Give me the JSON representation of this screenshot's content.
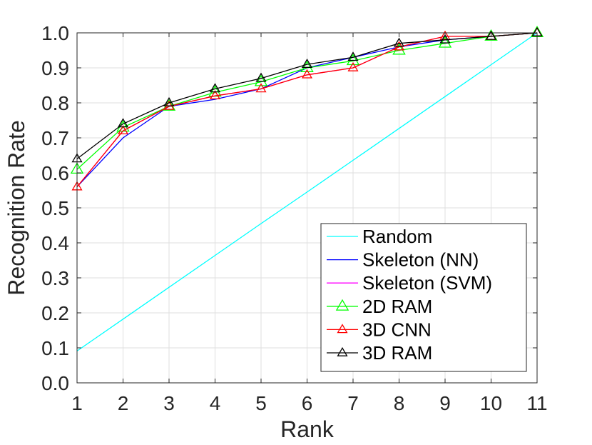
{
  "chart_data": {
    "type": "line",
    "title": "",
    "xlabel": "Rank",
    "ylabel": "Recognition Rate",
    "xlim": [
      1,
      11
    ],
    "ylim": [
      0,
      1
    ],
    "x": [
      1,
      2,
      3,
      4,
      5,
      6,
      7,
      8,
      9,
      10,
      11
    ],
    "xticks": [
      "1",
      "2",
      "3",
      "4",
      "5",
      "6",
      "7",
      "8",
      "9",
      "10",
      "11"
    ],
    "yticks": [
      "0.0",
      "0.1",
      "0.2",
      "0.3",
      "0.4",
      "0.5",
      "0.6",
      "0.7",
      "0.8",
      "0.9",
      "1.0"
    ],
    "grid": true,
    "legend_position": "bottom-right",
    "series": [
      {
        "name": "Random",
        "color": "#00ffff",
        "marker": "none",
        "values": [
          0.091,
          0.182,
          0.273,
          0.364,
          0.455,
          0.545,
          0.636,
          0.727,
          0.818,
          0.909,
          1.0
        ]
      },
      {
        "name": "Skeleton (NN)",
        "color": "#0000ff",
        "marker": "none",
        "values": [
          0.56,
          0.7,
          0.79,
          0.81,
          0.84,
          0.9,
          0.93,
          0.96,
          0.98,
          0.99,
          1.0
        ]
      },
      {
        "name": "Skeleton (SVM)",
        "color": "#ff00ff",
        "marker": "none",
        "values": [
          0.56,
          0.72,
          0.79,
          0.82,
          0.84,
          0.88,
          0.9,
          0.96,
          0.99,
          0.99,
          1.0
        ]
      },
      {
        "name": "2D RAM",
        "color": "#00ff00",
        "marker": "triangle-large",
        "values": [
          0.61,
          0.73,
          0.79,
          0.83,
          0.86,
          0.9,
          0.92,
          0.95,
          0.97,
          0.99,
          1.0
        ]
      },
      {
        "name": "3D CNN",
        "color": "#ff0000",
        "marker": "triangle",
        "values": [
          0.56,
          0.72,
          0.79,
          0.82,
          0.84,
          0.88,
          0.9,
          0.96,
          0.99,
          0.99,
          1.0
        ]
      },
      {
        "name": "3D RAM",
        "color": "#000000",
        "marker": "triangle",
        "values": [
          0.64,
          0.74,
          0.8,
          0.84,
          0.87,
          0.91,
          0.93,
          0.97,
          0.98,
          0.99,
          1.0
        ]
      }
    ]
  }
}
